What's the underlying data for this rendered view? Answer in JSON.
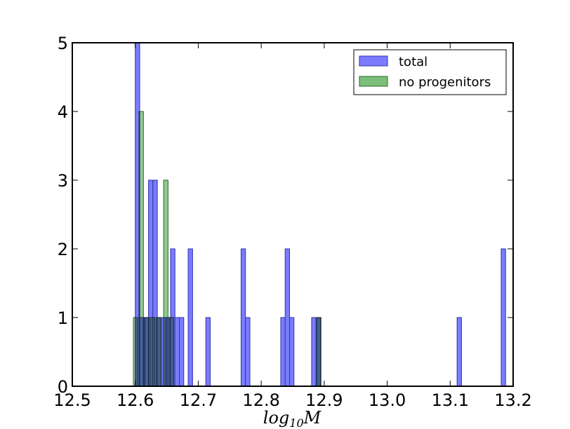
{
  "chart_data": {
    "type": "bar",
    "xlabel": "log",
    "xlabel_subscript": "10",
    "xlabel_var": "M",
    "xlim": [
      12.5,
      13.2
    ],
    "ylim": [
      0,
      5
    ],
    "grid": false,
    "legend_position": "top-right",
    "bin_width": 0.007,
    "xticks": [
      12.5,
      12.6,
      12.7,
      12.8,
      12.9,
      13.0,
      13.1,
      13.2
    ],
    "xtick_labels": [
      "12.5",
      "12.6",
      "12.7",
      "12.8",
      "12.9",
      "13.0",
      "13.1",
      "13.2"
    ],
    "yticks": [
      0,
      1,
      2,
      3,
      4,
      5
    ],
    "ytick_labels": [
      "0",
      "1",
      "2",
      "3",
      "4",
      "5"
    ],
    "series": [
      {
        "name": "total",
        "color": "#7b7bff",
        "edge_color": "#3333aa",
        "bins": [
          {
            "x": 12.6,
            "count": 5
          },
          {
            "x": 12.607,
            "count": 1
          },
          {
            "x": 12.614,
            "count": 1
          },
          {
            "x": 12.621,
            "count": 3
          },
          {
            "x": 12.628,
            "count": 3
          },
          {
            "x": 12.635,
            "count": 1
          },
          {
            "x": 12.642,
            "count": 1
          },
          {
            "x": 12.649,
            "count": 1
          },
          {
            "x": 12.656,
            "count": 2
          },
          {
            "x": 12.663,
            "count": 1
          },
          {
            "x": 12.67,
            "count": 1
          },
          {
            "x": 12.684,
            "count": 2
          },
          {
            "x": 12.712,
            "count": 1
          },
          {
            "x": 12.768,
            "count": 2
          },
          {
            "x": 12.775,
            "count": 1
          },
          {
            "x": 12.831,
            "count": 1
          },
          {
            "x": 12.838,
            "count": 2
          },
          {
            "x": 12.845,
            "count": 1
          },
          {
            "x": 12.88,
            "count": 1
          },
          {
            "x": 12.887,
            "count": 1
          },
          {
            "x": 13.111,
            "count": 1
          },
          {
            "x": 13.181,
            "count": 2
          }
        ]
      },
      {
        "name": "no progenitors",
        "color": "#7bbf7b",
        "edge_color": "#2a6a2a",
        "bins": [
          {
            "x": 12.597,
            "count": 1
          },
          {
            "x": 12.606,
            "count": 4
          },
          {
            "x": 12.615,
            "count": 1
          },
          {
            "x": 12.624,
            "count": 1
          },
          {
            "x": 12.633,
            "count": 1
          },
          {
            "x": 12.645,
            "count": 3
          },
          {
            "x": 12.654,
            "count": 1
          },
          {
            "x": 12.888,
            "count": 1
          }
        ]
      }
    ]
  }
}
